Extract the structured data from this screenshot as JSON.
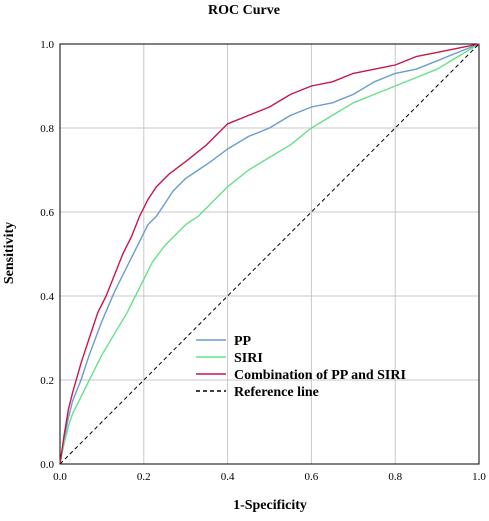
{
  "chart_data": {
    "type": "line",
    "title": "ROC Curve",
    "xlabel": "1-Specificity",
    "ylabel": "Sensitivity",
    "xlim": [
      0,
      1
    ],
    "ylim": [
      0,
      1
    ],
    "xticks": [
      "0.0",
      "0.2",
      "0.4",
      "0.6",
      "0.8",
      "1.0"
    ],
    "yticks": [
      "0.0",
      "0.2",
      "0.4",
      "0.6",
      "0.8",
      "1.0"
    ],
    "grid": true,
    "legend_position": "bottom-center",
    "series": [
      {
        "name": "PP",
        "color": "#6a9bd1",
        "dash": "solid",
        "points": [
          [
            0,
            0
          ],
          [
            0.01,
            0.06
          ],
          [
            0.02,
            0.11
          ],
          [
            0.03,
            0.15
          ],
          [
            0.05,
            0.2
          ],
          [
            0.07,
            0.26
          ],
          [
            0.1,
            0.34
          ],
          [
            0.13,
            0.41
          ],
          [
            0.15,
            0.45
          ],
          [
            0.17,
            0.49
          ],
          [
            0.19,
            0.53
          ],
          [
            0.21,
            0.57
          ],
          [
            0.23,
            0.59
          ],
          [
            0.25,
            0.62
          ],
          [
            0.27,
            0.65
          ],
          [
            0.3,
            0.68
          ],
          [
            0.33,
            0.7
          ],
          [
            0.36,
            0.72
          ],
          [
            0.4,
            0.75
          ],
          [
            0.45,
            0.78
          ],
          [
            0.5,
            0.8
          ],
          [
            0.55,
            0.83
          ],
          [
            0.6,
            0.85
          ],
          [
            0.65,
            0.86
          ],
          [
            0.7,
            0.88
          ],
          [
            0.75,
            0.91
          ],
          [
            0.8,
            0.93
          ],
          [
            0.85,
            0.94
          ],
          [
            0.9,
            0.96
          ],
          [
            0.95,
            0.98
          ],
          [
            1,
            1
          ]
        ]
      },
      {
        "name": "SIRI",
        "color": "#66e08a",
        "dash": "solid",
        "points": [
          [
            0,
            0
          ],
          [
            0.01,
            0.05
          ],
          [
            0.02,
            0.09
          ],
          [
            0.03,
            0.12
          ],
          [
            0.05,
            0.16
          ],
          [
            0.07,
            0.2
          ],
          [
            0.1,
            0.26
          ],
          [
            0.13,
            0.31
          ],
          [
            0.16,
            0.36
          ],
          [
            0.18,
            0.4
          ],
          [
            0.2,
            0.44
          ],
          [
            0.22,
            0.48
          ],
          [
            0.25,
            0.52
          ],
          [
            0.28,
            0.55
          ],
          [
            0.3,
            0.57
          ],
          [
            0.33,
            0.59
          ],
          [
            0.36,
            0.62
          ],
          [
            0.4,
            0.66
          ],
          [
            0.45,
            0.7
          ],
          [
            0.5,
            0.73
          ],
          [
            0.55,
            0.76
          ],
          [
            0.6,
            0.8
          ],
          [
            0.65,
            0.83
          ],
          [
            0.7,
            0.86
          ],
          [
            0.75,
            0.88
          ],
          [
            0.8,
            0.9
          ],
          [
            0.85,
            0.92
          ],
          [
            0.9,
            0.94
          ],
          [
            0.95,
            0.97
          ],
          [
            1,
            1
          ]
        ]
      },
      {
        "name": "Combination of PP and SIRI",
        "color": "#c4184a",
        "dash": "solid",
        "points": [
          [
            0,
            0
          ],
          [
            0.01,
            0.07
          ],
          [
            0.02,
            0.13
          ],
          [
            0.03,
            0.17
          ],
          [
            0.05,
            0.24
          ],
          [
            0.07,
            0.3
          ],
          [
            0.09,
            0.36
          ],
          [
            0.11,
            0.4
          ],
          [
            0.13,
            0.45
          ],
          [
            0.15,
            0.5
          ],
          [
            0.17,
            0.54
          ],
          [
            0.19,
            0.59
          ],
          [
            0.21,
            0.63
          ],
          [
            0.23,
            0.66
          ],
          [
            0.26,
            0.69
          ],
          [
            0.3,
            0.72
          ],
          [
            0.35,
            0.76
          ],
          [
            0.4,
            0.81
          ],
          [
            0.45,
            0.83
          ],
          [
            0.5,
            0.85
          ],
          [
            0.55,
            0.88
          ],
          [
            0.6,
            0.9
          ],
          [
            0.65,
            0.91
          ],
          [
            0.7,
            0.93
          ],
          [
            0.75,
            0.94
          ],
          [
            0.8,
            0.95
          ],
          [
            0.85,
            0.97
          ],
          [
            0.9,
            0.98
          ],
          [
            0.95,
            0.99
          ],
          [
            1,
            1
          ]
        ]
      },
      {
        "name": "Reference line",
        "color": "#000000",
        "dash": "dashed",
        "points": [
          [
            0,
            0
          ],
          [
            1,
            1
          ]
        ]
      }
    ]
  }
}
